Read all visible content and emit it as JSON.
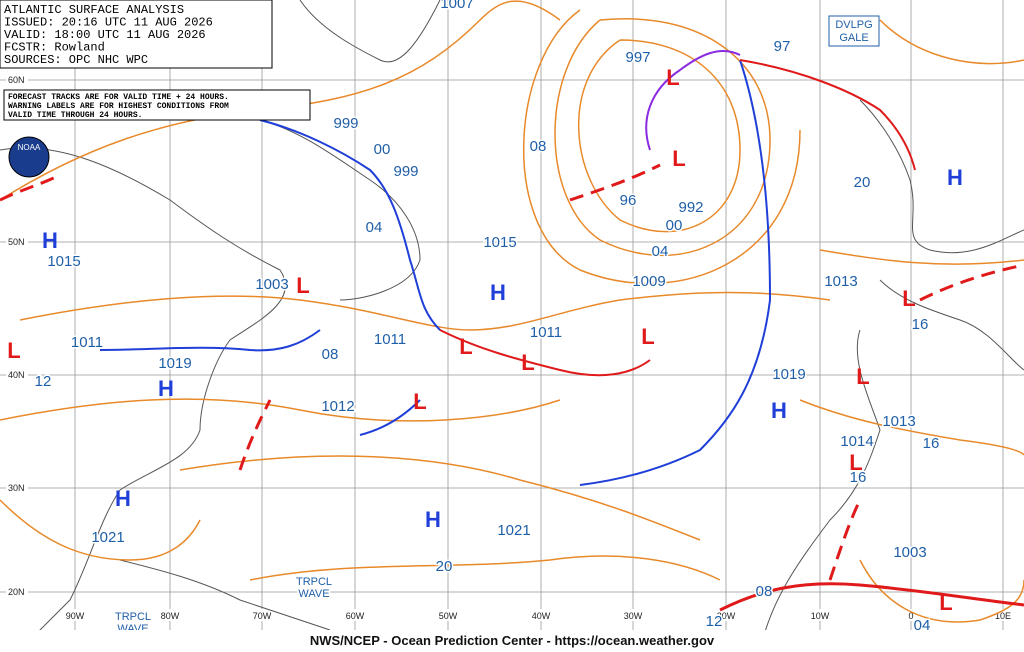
{
  "header": {
    "lines": [
      "ATLANTIC SURFACE ANALYSIS",
      "ISSUED: 20:16 UTC 11 AUG 2026",
      "VALID: 18:00 UTC 11 AUG 2026",
      "FCSTR:  Rowland",
      "SOURCES: OPC NHC WPC"
    ]
  },
  "note": {
    "lines": [
      "FORECAST TRACKS ARE FOR VALID TIME + 24 HOURS.",
      "WARNING LABELS ARE FOR HIGHEST CONDITIONS FROM",
      "VALID TIME THROUGH 24 HOURS."
    ]
  },
  "logo": "NOAA",
  "warning": {
    "lines": [
      "DVLPG",
      "GALE"
    ]
  },
  "tropical_waves": [
    {
      "lines": [
        "TRPCL",
        "WAVE"
      ]
    },
    {
      "lines": [
        "TRPCL",
        "WAVE"
      ]
    }
  ],
  "isobar_labels": [
    "1007",
    "997",
    "97",
    "999",
    "00",
    "999",
    "04",
    "08",
    "1015",
    "1003",
    "1011",
    "1011",
    "1011",
    "1019",
    "1012",
    "96",
    "992",
    "00",
    "04",
    "1009",
    "1013",
    "1019",
    "16",
    "1013",
    "1014",
    "16",
    "16",
    "1003",
    "04",
    "1015",
    "1021",
    "1021",
    "20",
    "12",
    "08",
    "08",
    "12",
    "20"
  ],
  "highs": [
    "H",
    "H",
    "H",
    "H",
    "H",
    "H",
    "H"
  ],
  "lows": [
    "L",
    "L",
    "L",
    "L",
    "L",
    "L",
    "L",
    "L",
    "L",
    "L",
    "L",
    "L"
  ],
  "latitudes": [
    "60N",
    "50N",
    "40N",
    "30N",
    "20N"
  ],
  "longitudes": [
    "90W",
    "80W",
    "70W",
    "60W",
    "50W",
    "40W",
    "30W",
    "20W",
    "10W",
    "0",
    "10E"
  ],
  "footer": "NWS/NCEP - Ocean Prediction Center - https://ocean.weather.gov"
}
